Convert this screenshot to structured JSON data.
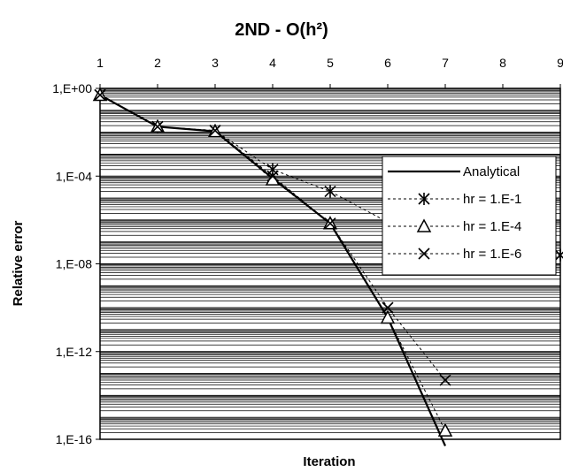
{
  "chart_data": {
    "type": "line",
    "title": "2ND - O(h²)",
    "xlabel": "Iteration",
    "ylabel": "Relative error",
    "x_ticks": [
      "1",
      "2",
      "3",
      "4",
      "5",
      "6",
      "7",
      "8",
      "9"
    ],
    "xlim": [
      1,
      9
    ],
    "ylim": [
      1e-16,
      1
    ],
    "y_scale": "log",
    "y_ticks": [
      "1,E+00",
      "1,E-04",
      "1,E-08",
      "1,E-12",
      "1,E-16"
    ],
    "grid": "horizontal",
    "legend_position": "top-right",
    "series": [
      {
        "name": "Analytical",
        "style": "solid",
        "marker": "none",
        "x": [
          1,
          2,
          3,
          4,
          5,
          6,
          7
        ],
        "y": [
          0.5,
          0.018,
          0.011,
          8e-05,
          7e-07,
          3.5e-11,
          5e-17
        ]
      },
      {
        "name": "hr = 1.E-1",
        "style": "dashed",
        "marker": "asterisk",
        "x": [
          1,
          2,
          3,
          4,
          5,
          6,
          7,
          8,
          9
        ],
        "y": [
          0.5,
          0.018,
          0.012,
          0.0002,
          2e-05,
          8e-07,
          3.7e-07,
          5e-08,
          2.5e-08
        ]
      },
      {
        "name": "hr = 1.E-4",
        "style": "dashed",
        "marker": "triangle",
        "x": [
          1,
          2,
          3,
          4,
          5,
          6,
          7
        ],
        "y": [
          0.5,
          0.018,
          0.011,
          7e-05,
          7e-07,
          3.5e-11,
          2.5e-16
        ]
      },
      {
        "name": "hr = 1.E-6",
        "style": "dashed",
        "marker": "x",
        "x": [
          1,
          2,
          3,
          4,
          5,
          6,
          7
        ],
        "y": [
          0.5,
          0.018,
          0.012,
          0.0001,
          7e-07,
          1e-10,
          5e-14
        ]
      }
    ]
  }
}
